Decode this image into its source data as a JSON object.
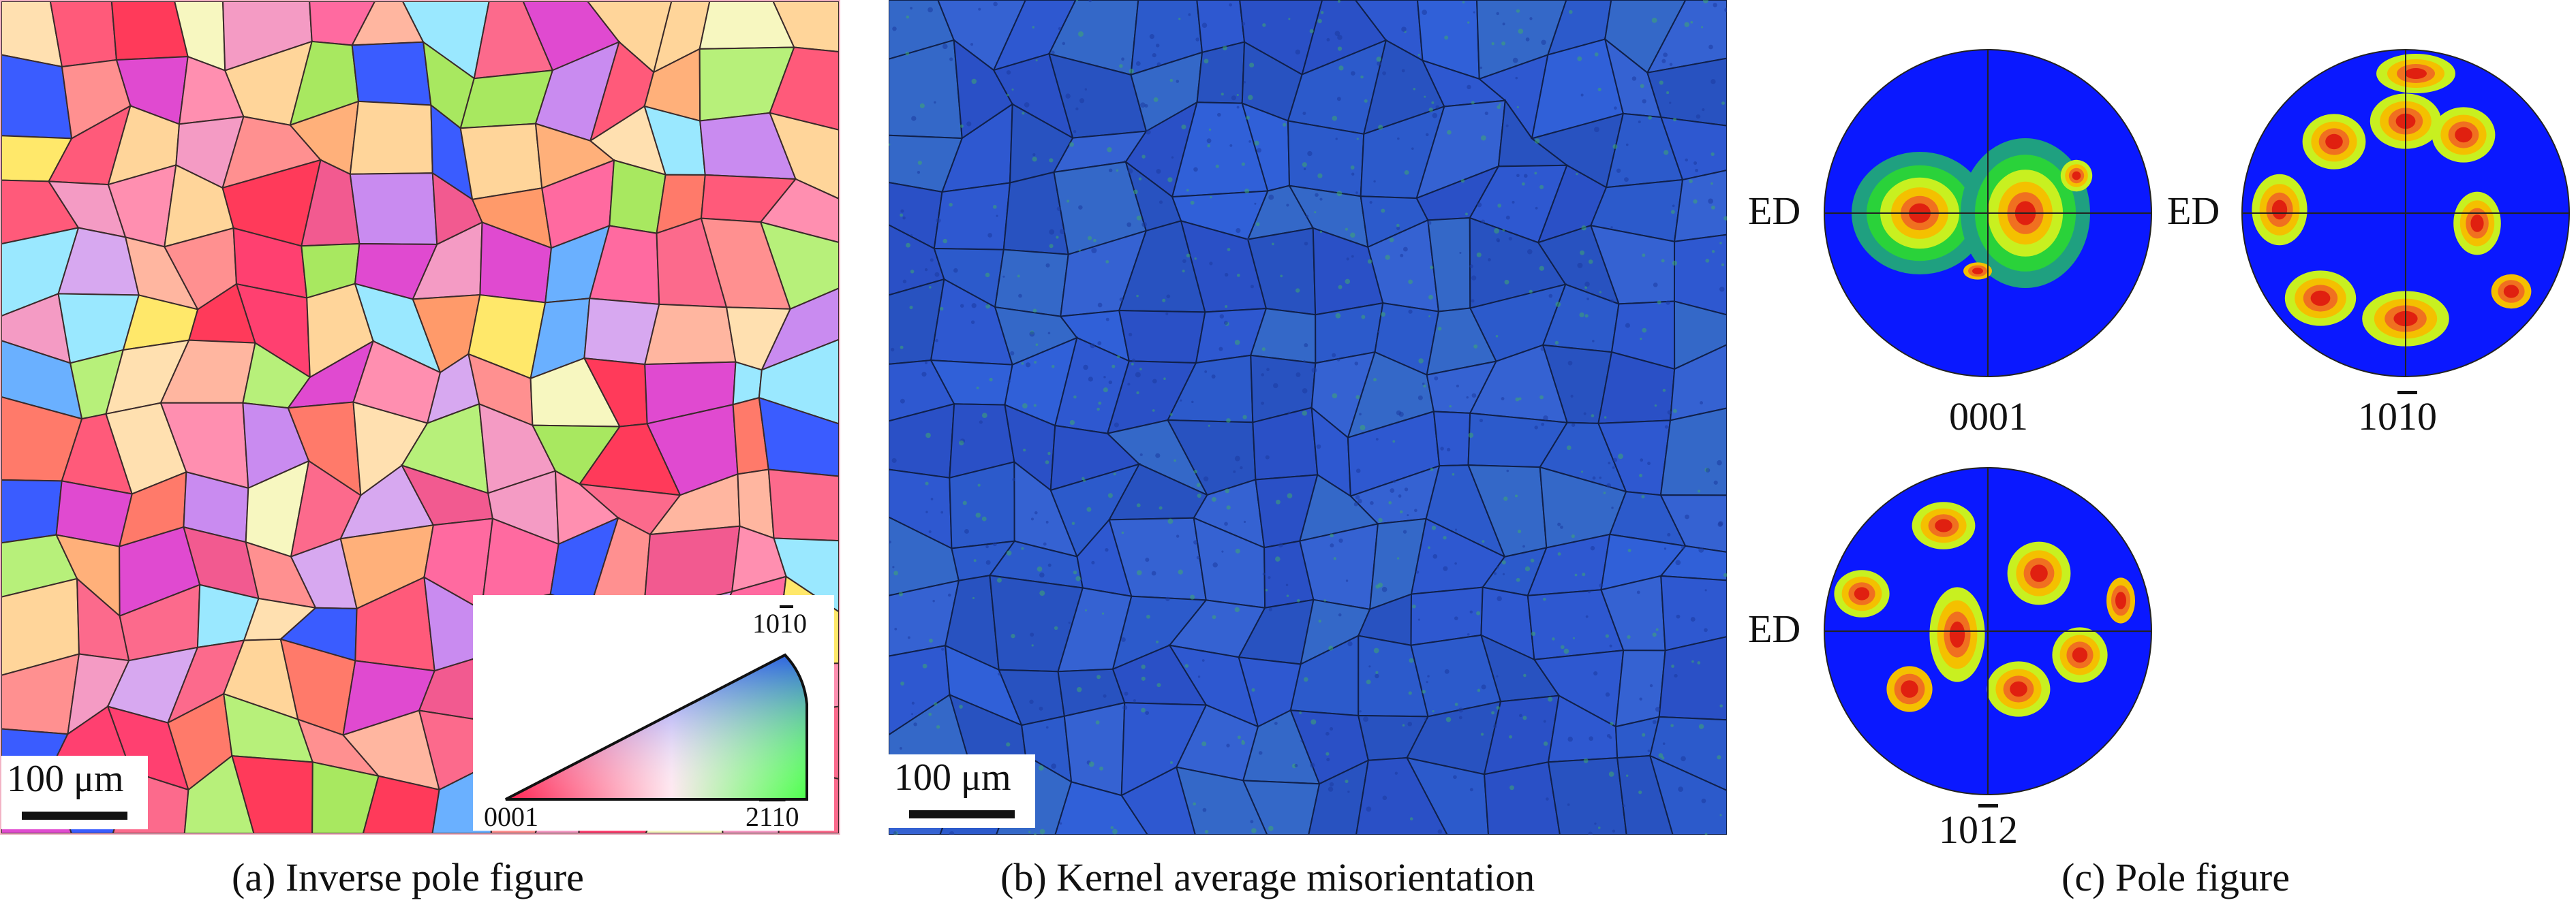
{
  "panels": {
    "ipf": {
      "caption": "(a) Inverse pole figure",
      "scale_label": "100 μm",
      "legend": {
        "top_label_prefix": "10",
        "top_label_bar": "1",
        "top_label_suffix": "0",
        "left_label": "0001",
        "right_label_prefix": "2",
        "right_label_bar": "11",
        "right_label_suffix": "0"
      }
    },
    "kam": {
      "caption": "(b) Kernel average misorientation",
      "scale_label": "100 μm"
    },
    "pole_figures": {
      "caption": "(c) Pole figure",
      "direction_label": "ED",
      "figures": [
        {
          "prefix": "0001",
          "bar": "",
          "suffix": ""
        },
        {
          "prefix": "10",
          "bar": "1",
          "suffix": "0"
        },
        {
          "prefix": "10",
          "bar": "1",
          "suffix": "2"
        }
      ]
    }
  },
  "colors": {
    "ipf_red": "#ff3c6e",
    "ipf_green": "#9aff5a",
    "ipf_blue": "#3a5cff",
    "kam_background": "#2a52c8",
    "pole_low": "#0a18ff",
    "pole_mid_green": "#20c830",
    "pole_yellow": "#f4f000",
    "pole_red": "#e82010"
  }
}
